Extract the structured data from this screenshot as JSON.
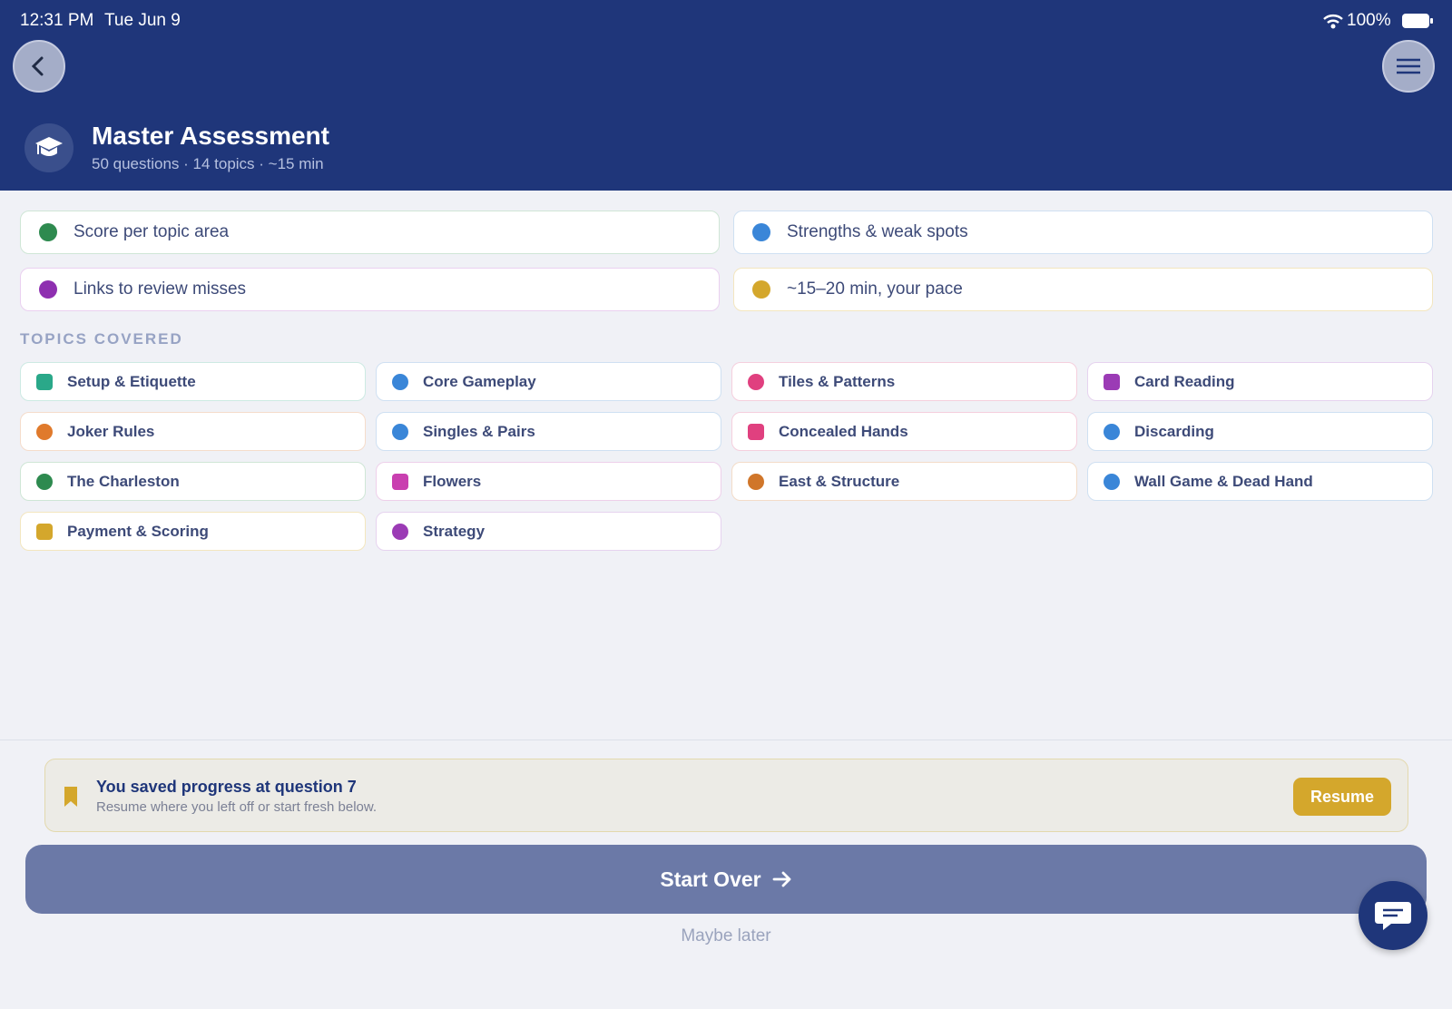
{
  "status_bar": {
    "time": "12:31 PM",
    "date": "Tue Jun 9",
    "battery": "100%"
  },
  "header": {
    "title": "Master Assessment",
    "subtitle": "50 questions · 14 topics · ~15 min"
  },
  "features": [
    "Score per topic area",
    "Strengths & weak spots",
    "Links to review misses",
    "~15–20 min, your pace"
  ],
  "topics_heading": "TOPICS COVERED",
  "topics": [
    "Setup & Etiquette",
    "Core Gameplay",
    "Tiles & Patterns",
    "Card Reading",
    "Joker Rules",
    "Singles & Pairs",
    "Concealed Hands",
    "Discarding",
    "The Charleston",
    "Flowers",
    "East & Structure",
    "Wall Game & Dead Hand",
    "Payment & Scoring",
    "Strategy"
  ],
  "saved_progress": {
    "title": "You saved progress at question 7",
    "subtitle": "Resume where you left off or start fresh below.",
    "button": "Resume"
  },
  "start_over": "Start Over",
  "maybe_later": "Maybe later"
}
